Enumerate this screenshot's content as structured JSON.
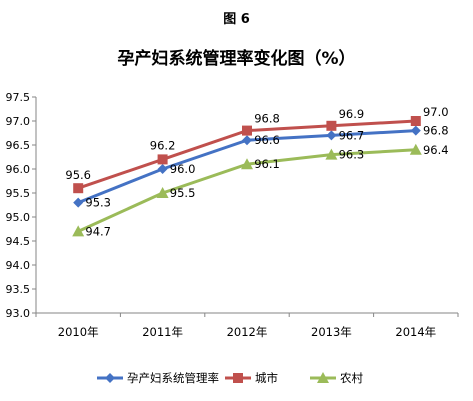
{
  "figure_label": "图 6",
  "chart_data": {
    "type": "line",
    "title": "孕产妇系统管理率变化图（%）",
    "xlabel": "",
    "ylabel": "",
    "categories": [
      "2010年",
      "2011年",
      "2012年",
      "2013年",
      "2014年"
    ],
    "ylim": [
      93.0,
      97.5
    ],
    "yticks": [
      "93.0",
      "93.5",
      "94.0",
      "94.5",
      "95.0",
      "95.5",
      "96.0",
      "96.5",
      "97.0",
      "97.5"
    ],
    "grid": false,
    "legend_position": "bottom",
    "series": [
      {
        "name": "孕产妇系统管理率",
        "values": [
          95.3,
          96.0,
          96.6,
          96.7,
          96.8
        ],
        "labels": [
          "95.3",
          "96.0",
          "96.6",
          "96.7",
          "96.8"
        ],
        "color": "#4472C4",
        "marker": "diamond"
      },
      {
        "name": "城市",
        "values": [
          95.6,
          96.2,
          96.8,
          96.9,
          97.0
        ],
        "labels": [
          "95.6",
          "96.2",
          "96.8",
          "96.9",
          "97.0"
        ],
        "color": "#C0504D",
        "marker": "square"
      },
      {
        "name": "农村",
        "values": [
          94.7,
          95.5,
          96.1,
          96.3,
          96.4
        ],
        "labels": [
          "94.7",
          "95.5",
          "96.1",
          "96.3",
          "96.4"
        ],
        "color": "#9BBB59",
        "marker": "triangle"
      }
    ]
  }
}
